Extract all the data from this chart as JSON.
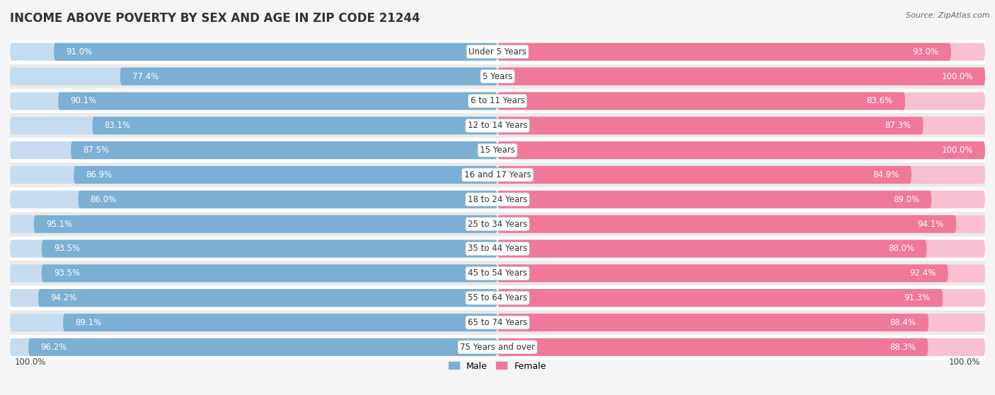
{
  "title": "INCOME ABOVE POVERTY BY SEX AND AGE IN ZIP CODE 21244",
  "source": "Source: ZipAtlas.com",
  "categories": [
    "Under 5 Years",
    "5 Years",
    "6 to 11 Years",
    "12 to 14 Years",
    "15 Years",
    "16 and 17 Years",
    "18 to 24 Years",
    "25 to 34 Years",
    "35 to 44 Years",
    "45 to 54 Years",
    "55 to 64 Years",
    "65 to 74 Years",
    "75 Years and over"
  ],
  "male_values": [
    91.0,
    77.4,
    90.1,
    83.1,
    87.5,
    86.9,
    86.0,
    95.1,
    93.5,
    93.5,
    94.2,
    89.1,
    96.2
  ],
  "female_values": [
    93.0,
    100.0,
    83.6,
    87.3,
    100.0,
    84.9,
    89.0,
    94.1,
    88.0,
    92.4,
    91.3,
    88.4,
    88.3
  ],
  "male_color": "#7BAFD4",
  "female_color": "#F07898",
  "male_color_light": "#C5DCF0",
  "female_color_light": "#F8C0D0",
  "background_color": "#f5f5f5",
  "max_value": 100.0,
  "legend_male": "Male",
  "legend_female": "Female",
  "title_fontsize": 12,
  "label_fontsize": 8.5,
  "value_fontsize": 8.5,
  "source_fontsize": 8
}
